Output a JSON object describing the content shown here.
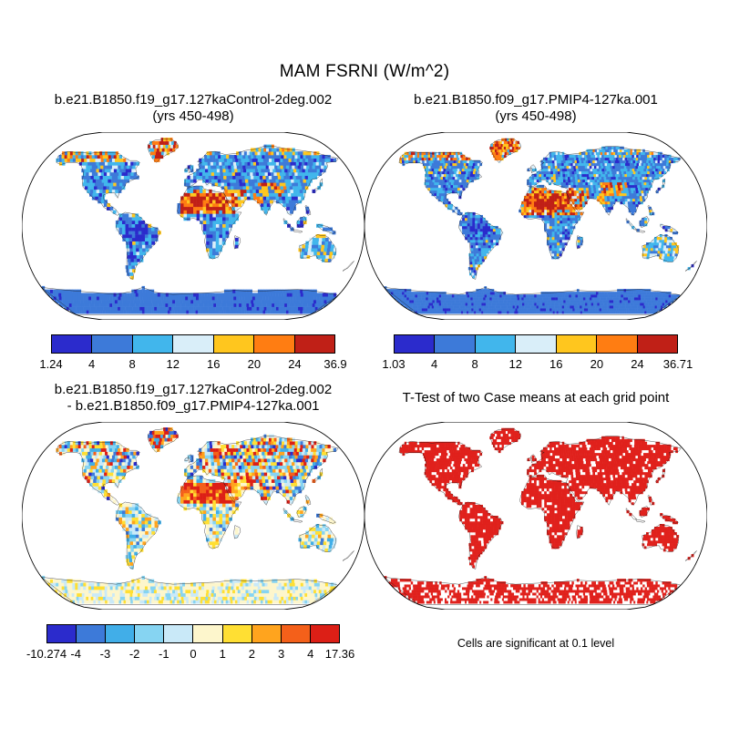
{
  "figure": {
    "main_title": "MAM FSRNI (W/m^2)",
    "panels": {
      "control": {
        "title_line1": "b.e21.B1850.f19_g17.127kaControl-2deg.002",
        "title_line2": "(yrs 450-498)"
      },
      "pmip4": {
        "title_line1": "b.e21.B1850.f09_g17.PMIP4-127ka.001",
        "title_line2": "(yrs 450-498)"
      },
      "diff": {
        "title_line1": "b.e21.B1850.f19_g17.127kaControl-2deg.002",
        "title_line2": "- b.e21.B1850.f09_g17.PMIP4-127ka.001"
      },
      "ttest": {
        "title": "T-Test of two Case means at each grid point",
        "caption": "Cells are significant at 0.1 level"
      }
    }
  },
  "chart_data": [
    {
      "type": "heatmap",
      "panel": "top-left",
      "title": "b.e21.B1850.f19_g17.127kaControl-2deg.002 (yrs 450-498)",
      "variable": "MAM FSRNI",
      "units": "W/m^2",
      "projection": "robinson",
      "data_min": 1.24,
      "data_max": 36.9,
      "contour_levels": [
        4,
        8,
        12,
        16,
        20,
        24
      ],
      "colorbar_labels": [
        "1.24",
        "4",
        "8",
        "12",
        "16",
        "20",
        "24",
        "36.9"
      ],
      "colorbar_colors": [
        "#2b2bcc",
        "#3d7ad9",
        "#41b6ec",
        "#d9eef9",
        "#ffc61e",
        "#ff7d12",
        "#c02017"
      ]
    },
    {
      "type": "heatmap",
      "panel": "top-right",
      "title": "b.e21.B1850.f09_g17.PMIP4-127ka.001 (yrs 450-498)",
      "variable": "MAM FSRNI",
      "units": "W/m^2",
      "projection": "robinson",
      "data_min": 1.03,
      "data_max": 36.71,
      "contour_levels": [
        4,
        8,
        12,
        16,
        20,
        24
      ],
      "colorbar_labels": [
        "1.03",
        "4",
        "8",
        "12",
        "16",
        "20",
        "24",
        "36.71"
      ],
      "colorbar_colors": [
        "#2b2bcc",
        "#3d7ad9",
        "#41b6ec",
        "#d9eef9",
        "#ffc61e",
        "#ff7d12",
        "#c02017"
      ]
    },
    {
      "type": "heatmap",
      "panel": "bottom-left",
      "title": "b.e21.B1850.f19_g17.127kaControl-2deg.002 - b.e21.B1850.f09_g17.PMIP4-127ka.001",
      "variable": "MAM FSRNI difference",
      "units": "W/m^2",
      "projection": "robinson",
      "data_min": -10.274,
      "data_max": 17.36,
      "contour_levels": [
        -4,
        -3,
        -2,
        -1,
        0,
        1,
        2,
        3,
        4
      ],
      "colorbar_labels": [
        "-10.274",
        "-4",
        "-3",
        "-2",
        "-1",
        "0",
        "1",
        "2",
        "3",
        "4",
        "17.36"
      ],
      "colorbar_colors": [
        "#2b2bcc",
        "#3d7ad9",
        "#41aee8",
        "#86d4f2",
        "#c9e9f8",
        "#fdf6cc",
        "#ffdf33",
        "#ffa41e",
        "#f4601a",
        "#dc1f16"
      ]
    },
    {
      "type": "heatmap",
      "panel": "bottom-right",
      "title": "T-Test of two Case means at each grid point",
      "note": "Cells are significant at 0.1 level",
      "significance_level": 0.1,
      "significant_color": "#e0211c",
      "projection": "robinson"
    }
  ]
}
